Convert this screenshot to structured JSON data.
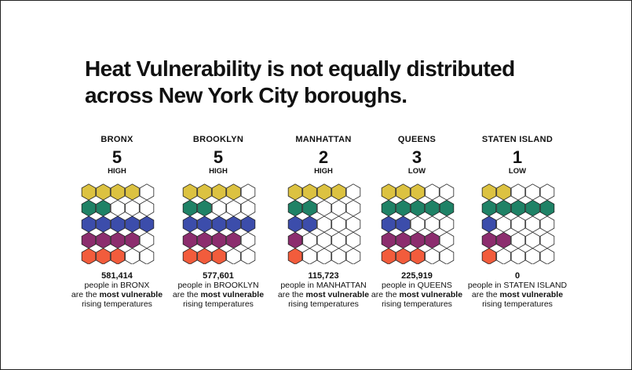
{
  "title_lines": [
    "Heat Vulnerability is not equally distributed",
    "across New York City boroughs."
  ],
  "colors": {
    "yellow": "#dcc241",
    "green": "#1f8266",
    "blue": "#3c4dab",
    "purple": "#8c2d6e",
    "orange": "#f25c3c",
    "empty": "#ffffff",
    "outline": "#222222"
  },
  "row_colors": [
    "yellow",
    "green",
    "blue",
    "purple",
    "orange"
  ],
  "boroughs": [
    {
      "name": "BRONX",
      "score": "5",
      "level": "HIGH",
      "filled": [
        4,
        2,
        5,
        4,
        3
      ],
      "count": "581,414",
      "line1": "people in BRONX",
      "line2_pre": "are the ",
      "line2_bold": "most vulnerable",
      "line2_post": "",
      "line3": "rising temperatures"
    },
    {
      "name": "BROOKLYN",
      "score": "5",
      "level": "HIGH",
      "filled": [
        4,
        2,
        5,
        4,
        3
      ],
      "count": "577,601",
      "line1": "people in BROOKLYN",
      "line2_pre": "are the ",
      "line2_bold": "most vulnerable",
      "line2_post": "",
      "line3": "rising temperatures"
    },
    {
      "name": "MANHATTAN",
      "score": "2",
      "level": "HIGH",
      "filled": [
        4,
        2,
        2,
        1,
        1
      ],
      "count": "115,723",
      "line1": "people in MANHATTAN",
      "line2_pre": "are the ",
      "line2_bold": "most vulnerable",
      "line2_post": "",
      "line3": "rising temperatures"
    },
    {
      "name": "QUEENS",
      "score": "3",
      "level": "LOW",
      "filled": [
        3,
        5,
        2,
        4,
        3
      ],
      "count": "225,919",
      "line1": "people in QUEENS",
      "line2_pre": "are the ",
      "line2_bold": "most vulnerable",
      "line2_post": "",
      "line3": "rising temperatures"
    },
    {
      "name": "STATEN ISLAND",
      "score": "1",
      "level": "LOW",
      "filled": [
        2,
        5,
        1,
        2,
        1
      ],
      "count": "",
      "line1": "0",
      "line1b": "people in STATEN ISLAND",
      "line2_pre": "are the ",
      "line2_bold": "most vulnerable",
      "line2_post": "",
      "line3": "rising temperatures"
    }
  ]
}
